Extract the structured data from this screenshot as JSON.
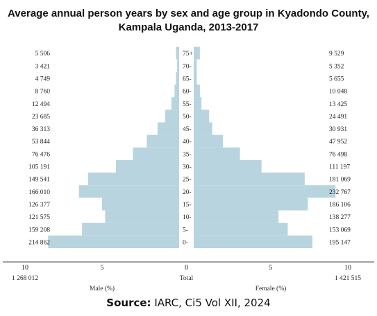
{
  "chart_data": {
    "type": "bar",
    "orientation": "horizontal-pyramid",
    "title": "Average annual person years by sex and age group in Kyadondo County, Kampala Uganda, 2013-2017",
    "title_lines": [
      "Average annual person years by sex and age group in Kyadondo County,",
      "Kampala Uganda, 2013-2017"
    ],
    "categories": [
      "0-",
      "5-",
      "10-",
      "15-",
      "20-",
      "25-",
      "30-",
      "35-",
      "40-",
      "45-",
      "50-",
      "55-",
      "60-",
      "65-",
      "70-",
      "75+"
    ],
    "series": [
      {
        "name": "Male (%)",
        "side": "left",
        "person_years": [
          214862,
          159208,
          121575,
          126377,
          166010,
          149541,
          105191,
          76476,
          53844,
          36313,
          23685,
          12494,
          8760,
          4749,
          3421,
          5506
        ],
        "person_years_labels": [
          "214 862",
          "159 208",
          "121 575",
          "126 377",
          "166 010",
          "149 541",
          "105 191",
          "76 476",
          "53 844",
          "36 313",
          "23 685",
          "12 494",
          "8 760",
          "4 749",
          "3 421",
          "5 506"
        ],
        "values": [
          8.5,
          6.3,
          4.8,
          5.0,
          6.5,
          5.9,
          4.1,
          3.0,
          2.1,
          1.4,
          0.9,
          0.5,
          0.3,
          0.2,
          0.13,
          0.2
        ],
        "total_label": "1 268 012"
      },
      {
        "name": "Female (%)",
        "side": "right",
        "person_years": [
          195147,
          153069,
          138277,
          186106,
          232767,
          181069,
          111197,
          76498,
          47952,
          30931,
          24491,
          13425,
          10048,
          5655,
          5352,
          9529
        ],
        "person_years_labels": [
          "195 147",
          "153 069",
          "138 277",
          "186 106",
          "232 767",
          "181 069",
          "111 197",
          "76 498",
          "47 952",
          "30 931",
          "24 491",
          "13 425",
          "10 048",
          "5 655",
          "5 352",
          "9 529"
        ],
        "values": [
          7.7,
          6.1,
          5.5,
          7.4,
          9.2,
          7.2,
          4.4,
          3.0,
          1.9,
          1.2,
          1.0,
          0.5,
          0.4,
          0.2,
          0.2,
          0.4
        ],
        "total_label": "1 421 515"
      }
    ],
    "xlim": [
      0,
      10
    ],
    "xticks": [
      "10",
      "5",
      "0",
      "5",
      "10"
    ],
    "x_center_label": "Total",
    "bar_color": "#b8d4df",
    "grid": false,
    "legend": "none"
  },
  "source": {
    "prefix": "Source:",
    "text": " IARC, Ci5 Vol XII, 2024"
  }
}
